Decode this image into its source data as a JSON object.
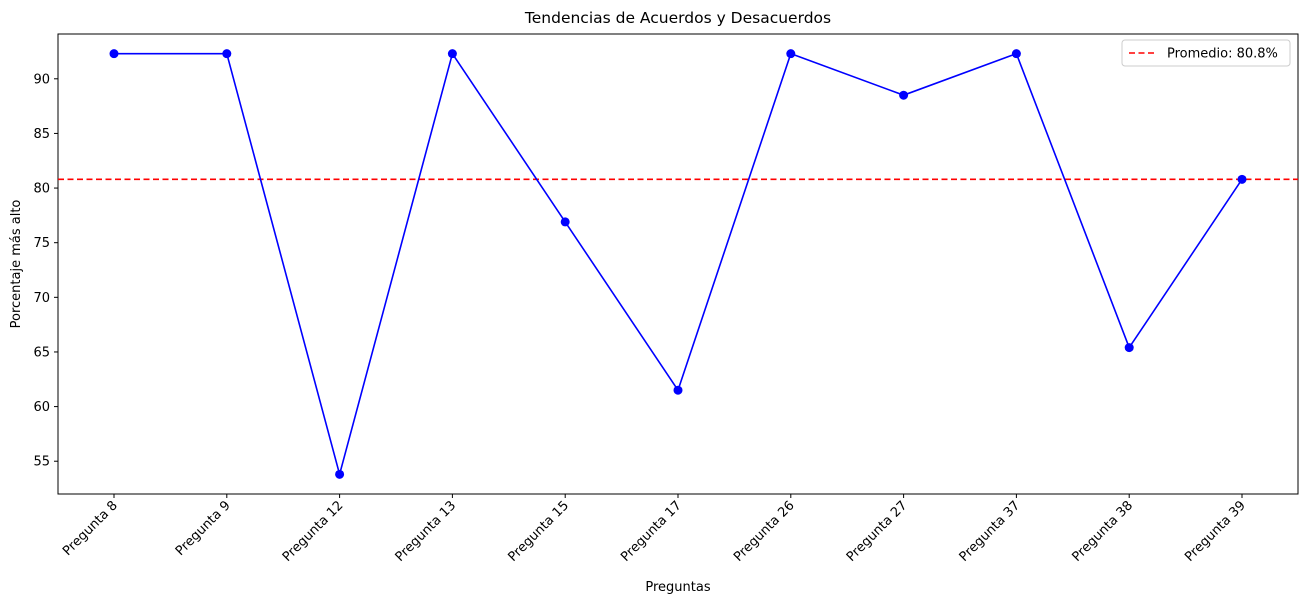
{
  "chart_data": {
    "type": "line",
    "title": "Tendencias de Acuerdos y Desacuerdos",
    "xlabel": "Preguntas",
    "ylabel": "Porcentaje más alto",
    "categories": [
      "Pregunta 8",
      "Pregunta 9",
      "Pregunta 12",
      "Pregunta 13",
      "Pregunta 15",
      "Pregunta 17",
      "Pregunta 26",
      "Pregunta 27",
      "Pregunta 37",
      "Pregunta 38",
      "Pregunta 39"
    ],
    "series": [
      {
        "color": "#0000ff",
        "values": [
          92.3,
          92.3,
          53.8,
          92.3,
          76.9,
          61.5,
          92.3,
          88.5,
          92.3,
          65.4,
          80.8
        ]
      }
    ],
    "reference_line": {
      "value": 80.8,
      "label": "Promedio: 80.8%",
      "color": "#ff0000",
      "style": "dashed"
    },
    "yticks": [
      55,
      60,
      65,
      70,
      75,
      80,
      85,
      90
    ],
    "ylim": [
      52,
      94.1
    ],
    "grid": false,
    "legend_position": "top-right",
    "x_tick_rotation": 45
  }
}
